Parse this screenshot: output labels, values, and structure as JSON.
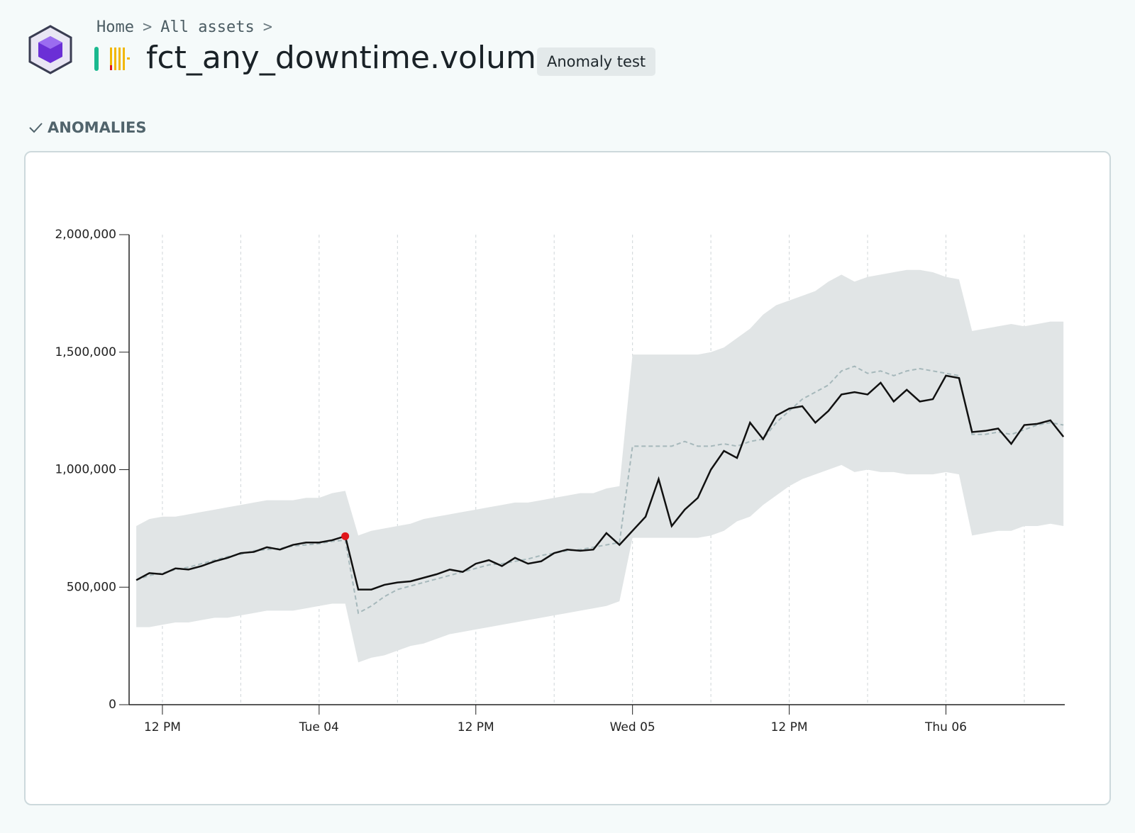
{
  "header": {
    "breadcrumb": [
      "Home",
      "All assets"
    ],
    "title": "fct_any_downtime.volume",
    "badge": "Anomaly test"
  },
  "section": "ANOMALIES",
  "chart_data": {
    "type": "line",
    "x": [
      10,
      11,
      12,
      13,
      14,
      15,
      16,
      17,
      18,
      19,
      20,
      21,
      22,
      23,
      24,
      25,
      26,
      27,
      28,
      29,
      30,
      31,
      32,
      33,
      34,
      35,
      36,
      37,
      38,
      39,
      40,
      41,
      42,
      43,
      44,
      45,
      46,
      47,
      48,
      49,
      50,
      51,
      52,
      53,
      54,
      55,
      56,
      57,
      58,
      59,
      60,
      61,
      62,
      63,
      64,
      65,
      66,
      67,
      68,
      69,
      70,
      71,
      72,
      73,
      74,
      75,
      76,
      77,
      78,
      79,
      80,
      81
    ],
    "xlim": [
      9.45,
      81.1
    ],
    "xticks": [
      {
        "value": 12,
        "label": "12 PM"
      },
      {
        "value": 24,
        "label": "Tue 04"
      },
      {
        "value": 36,
        "label": "12 PM"
      },
      {
        "value": 48,
        "label": "Wed 05"
      },
      {
        "value": 60,
        "label": "12 PM"
      },
      {
        "value": 72,
        "label": "Thu 06"
      }
    ],
    "xminor_ticks": [
      18,
      30,
      42,
      54,
      66,
      78
    ],
    "ylim": [
      0,
      2000000
    ],
    "yticks": [
      0,
      {
        "value": 500000,
        "label": "500,000"
      },
      {
        "value": 1000000,
        "label": "1,000,000"
      },
      {
        "value": 1500000,
        "label": "1,500,000"
      },
      {
        "value": 2000000,
        "label": "2,000,000"
      }
    ],
    "grid": true,
    "series": [
      {
        "color": "#111111",
        "values": [
          530000,
          560000,
          555000,
          580000,
          575000,
          590000,
          610000,
          625000,
          645000,
          650000,
          670000,
          660000,
          680000,
          690000,
          690000,
          700000,
          717000,
          490000,
          490000,
          510000,
          520000,
          525000,
          540000,
          555000,
          575000,
          565000,
          600000,
          615000,
          590000,
          625000,
          600000,
          610000,
          645000,
          660000,
          655000,
          660000,
          730000,
          680000,
          740000,
          800000,
          960000,
          760000,
          830000,
          880000,
          1000000,
          1080000,
          1050000,
          1200000,
          1130000,
          1230000,
          1260000,
          1270000,
          1200000,
          1250000,
          1320000,
          1330000,
          1320000,
          1370000,
          1290000,
          1340000,
          1290000,
          1300000,
          1400000,
          1390000,
          1160000,
          1165000,
          1175000,
          1110000,
          1190000,
          1195000,
          1210000,
          1140000
        ]
      },
      {
        "color": "#a6b8bb",
        "dashed": true,
        "values": [
          530000,
          550000,
          560000,
          575000,
          585000,
          600000,
          615000,
          630000,
          640000,
          655000,
          660000,
          665000,
          675000,
          680000,
          685000,
          695000,
          700000,
          390000,
          420000,
          460000,
          490000,
          505000,
          520000,
          535000,
          550000,
          565000,
          580000,
          595000,
          600000,
          610000,
          620000,
          635000,
          645000,
          655000,
          660000,
          670000,
          680000,
          690000,
          1100000,
          1100000,
          1100000,
          1100000,
          1120000,
          1100000,
          1100000,
          1110000,
          1100000,
          1120000,
          1130000,
          1200000,
          1250000,
          1300000,
          1330000,
          1360000,
          1420000,
          1440000,
          1410000,
          1420000,
          1400000,
          1420000,
          1430000,
          1420000,
          1410000,
          1400000,
          1150000,
          1150000,
          1160000,
          1150000,
          1170000,
          1190000,
          1200000,
          1190000
        ]
      }
    ],
    "band": {
      "color": "#e1e5e6",
      "upper": [
        760000,
        790000,
        800000,
        800000,
        810000,
        820000,
        830000,
        840000,
        850000,
        860000,
        870000,
        870000,
        870000,
        880000,
        880000,
        900000,
        910000,
        720000,
        740000,
        750000,
        760000,
        770000,
        790000,
        800000,
        810000,
        820000,
        830000,
        840000,
        850000,
        860000,
        860000,
        870000,
        880000,
        890000,
        900000,
        900000,
        920000,
        930000,
        1490000,
        1490000,
        1490000,
        1490000,
        1490000,
        1490000,
        1500000,
        1520000,
        1560000,
        1600000,
        1660000,
        1700000,
        1720000,
        1740000,
        1760000,
        1800000,
        1830000,
        1800000,
        1820000,
        1830000,
        1840000,
        1850000,
        1850000,
        1840000,
        1820000,
        1810000,
        1590000,
        1600000,
        1610000,
        1620000,
        1610000,
        1620000,
        1630000,
        1630000
      ],
      "lower": [
        330000,
        330000,
        340000,
        350000,
        350000,
        360000,
        370000,
        370000,
        380000,
        390000,
        400000,
        400000,
        400000,
        410000,
        420000,
        430000,
        430000,
        180000,
        200000,
        210000,
        230000,
        250000,
        260000,
        280000,
        300000,
        310000,
        320000,
        330000,
        340000,
        350000,
        360000,
        370000,
        380000,
        390000,
        400000,
        410000,
        420000,
        440000,
        710000,
        710000,
        710000,
        710000,
        710000,
        710000,
        720000,
        740000,
        780000,
        800000,
        850000,
        890000,
        930000,
        960000,
        980000,
        1000000,
        1020000,
        990000,
        1000000,
        990000,
        990000,
        980000,
        980000,
        980000,
        990000,
        980000,
        720000,
        730000,
        740000,
        740000,
        760000,
        760000,
        770000,
        760000
      ]
    },
    "anomalies": [
      16
    ],
    "anomaly_color": "#e0161b"
  }
}
